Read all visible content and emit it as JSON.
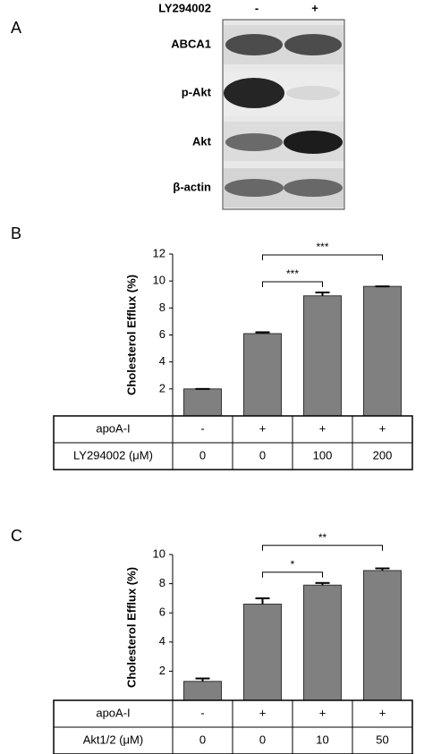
{
  "blot": {
    "panel_label": "A",
    "treatment": "LY294002",
    "conditions": [
      "-",
      "+"
    ],
    "bands": [
      "ABCA1",
      "p-Akt",
      "Akt",
      "β-actin"
    ]
  },
  "chart_data": [
    {
      "type": "bar",
      "panel_label": "B",
      "y_label": "Cholesterol Efflux (%)",
      "color": "#808080",
      "values": [
        2.0,
        6.1,
        8.9,
        9.6
      ],
      "errors": [
        0,
        0.1,
        0.25,
        0
      ],
      "ylim": [
        0,
        12
      ],
      "yticks": [
        2,
        4,
        6,
        8,
        10,
        12
      ],
      "brackets": [
        {
          "label": "***",
          "bars": [
            1,
            2
          ]
        },
        {
          "label": "***",
          "bars": [
            1,
            3
          ]
        }
      ],
      "table": {
        "rows": [
          {
            "label": "apoA-I",
            "cells": [
              "-",
              "+",
              "+",
              "+"
            ]
          },
          {
            "label": "LY294002 (μM)",
            "cells": [
              0,
              0,
              100,
              200
            ]
          }
        ]
      }
    },
    {
      "type": "bar",
      "panel_label": "C",
      "y_label": "Cholesterol Efflux (%)",
      "color": "#808080",
      "values": [
        1.3,
        6.6,
        7.9,
        8.9
      ],
      "errors": [
        0.2,
        0.4,
        0.15,
        0.15
      ],
      "ylim": [
        0,
        10
      ],
      "yticks": [
        2,
        4,
        6,
        8,
        10
      ],
      "brackets": [
        {
          "label": "*",
          "bars": [
            1,
            2
          ]
        },
        {
          "label": "**",
          "bars": [
            1,
            3
          ]
        }
      ],
      "table": {
        "rows": [
          {
            "label": "apoA-I",
            "cells": [
              "-",
              "+",
              "+",
              "+"
            ]
          },
          {
            "label": "Akt1/2 (μM)",
            "cells": [
              0,
              0,
              10,
              50
            ]
          }
        ]
      }
    }
  ]
}
